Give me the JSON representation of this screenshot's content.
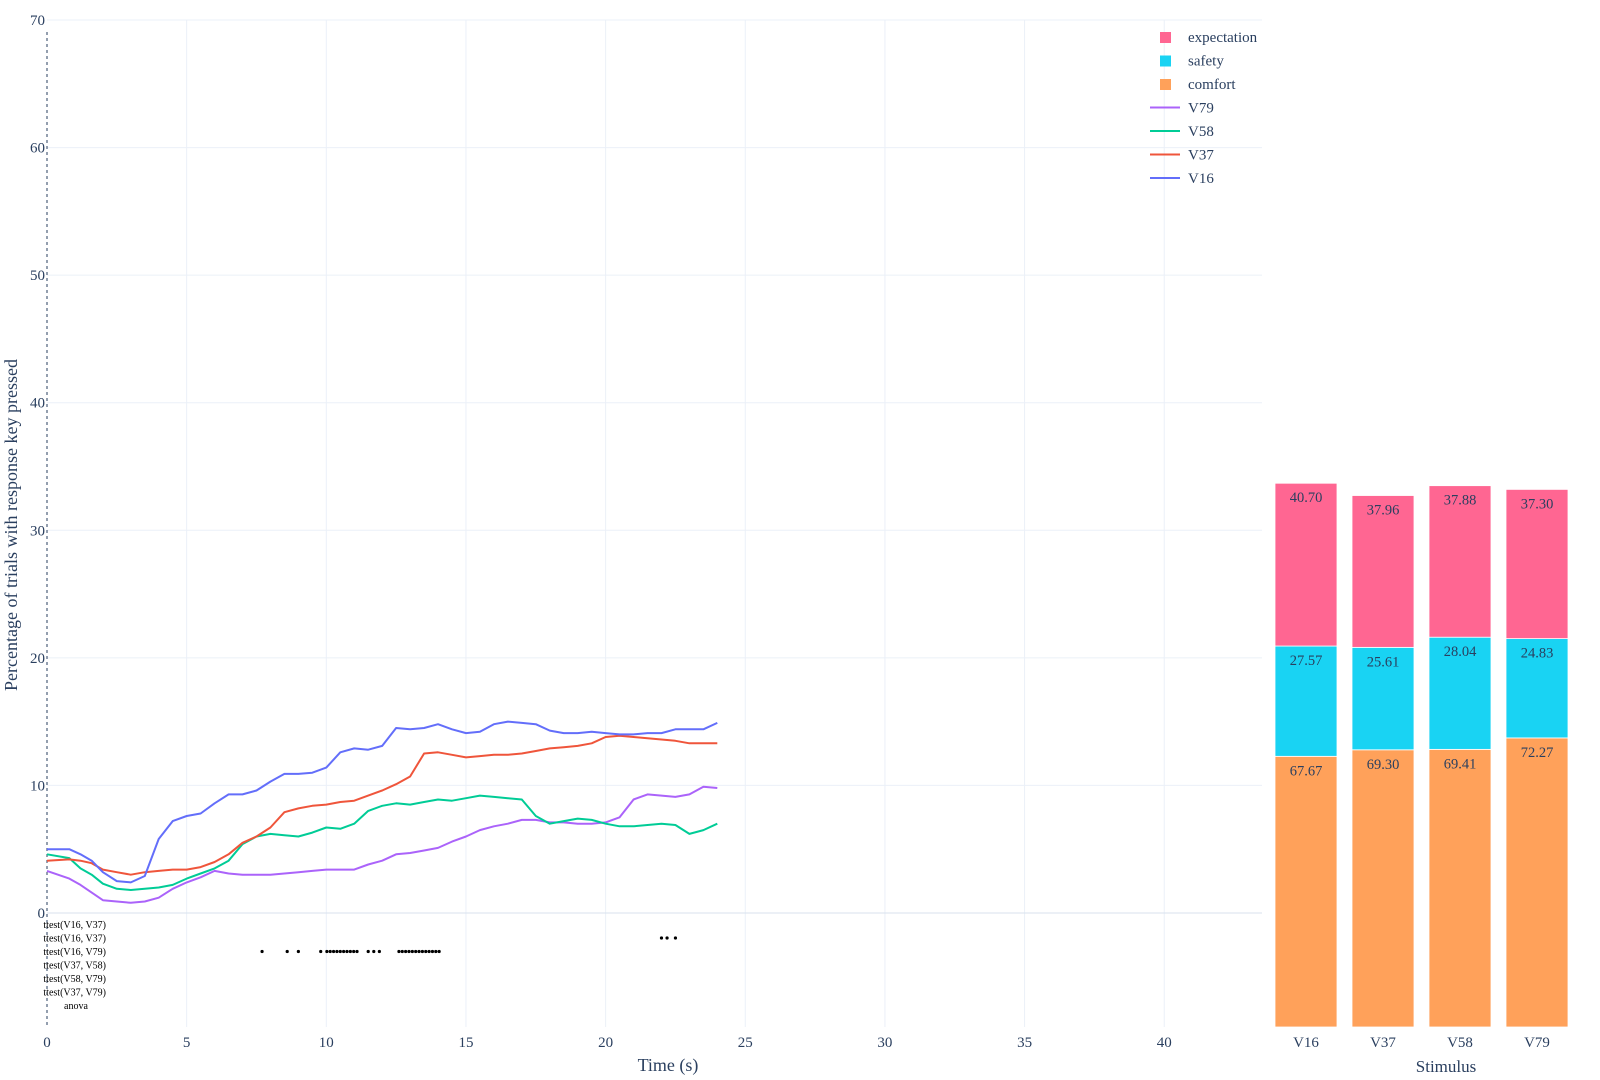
{
  "chart_data": [
    {
      "type": "line",
      "xlabel": "Time (s)",
      "ylabel": "Percentage of trials with response key pressed",
      "xlim": [
        0,
        43.5
      ],
      "ylim": [
        0,
        70
      ],
      "xticks": [
        0,
        5,
        10,
        15,
        20,
        25,
        30,
        35,
        40
      ],
      "yticks": [
        0,
        10,
        20,
        30,
        40,
        50,
        60,
        70
      ],
      "grid": true,
      "series": [
        {
          "name": "V16",
          "color": "#636efa",
          "x": [
            0,
            0.8,
            1.2,
            1.6,
            2,
            2.5,
            3,
            3.5,
            4,
            4.5,
            5,
            5.5,
            6,
            6.5,
            7,
            7.5,
            8,
            8.5,
            9,
            9.5,
            10,
            10.5,
            11,
            11.5,
            12,
            12.5,
            13,
            13.5,
            14,
            14.5,
            15,
            15.5,
            16,
            16.5,
            17,
            17.5,
            18,
            18.5,
            19,
            19.5,
            20,
            20.5,
            21,
            21.5,
            22,
            22.5,
            23,
            23.5,
            24
          ],
          "y": [
            5,
            5,
            4.6,
            4.1,
            3.2,
            2.5,
            2.4,
            2.9,
            5.8,
            7.2,
            7.6,
            7.8,
            8.6,
            9.3,
            9.3,
            9.6,
            10.3,
            10.9,
            10.9,
            11,
            11.4,
            12.6,
            12.9,
            12.8,
            13.1,
            14.5,
            14.4,
            14.5,
            14.8,
            14.4,
            14.1,
            14.2,
            14.8,
            15,
            14.9,
            14.8,
            14.3,
            14.1,
            14.1,
            14.2,
            14.1,
            14,
            14,
            14.1,
            14.1,
            14.4,
            14.4,
            14.4,
            14.9
          ]
        },
        {
          "name": "V37",
          "color": "#ef553b",
          "x": [
            0,
            0.8,
            1.2,
            1.6,
            2,
            2.5,
            3,
            3.5,
            4,
            4.5,
            5,
            5.5,
            6,
            6.5,
            7,
            7.5,
            8,
            8.5,
            9,
            9.5,
            10,
            10.5,
            11,
            11.5,
            12,
            12.5,
            13,
            13.5,
            14,
            14.5,
            15,
            15.5,
            16,
            16.5,
            17,
            17.5,
            18,
            18.5,
            19,
            19.5,
            20,
            20.5,
            21,
            21.5,
            22,
            22.5,
            23,
            23.5,
            24
          ],
          "y": [
            4.1,
            4.2,
            4.1,
            3.9,
            3.4,
            3.2,
            3,
            3.2,
            3.3,
            3.4,
            3.4,
            3.6,
            4,
            4.6,
            5.5,
            6,
            6.7,
            7.9,
            8.2,
            8.4,
            8.5,
            8.7,
            8.8,
            9.2,
            9.6,
            10.1,
            10.7,
            12.5,
            12.6,
            12.4,
            12.2,
            12.3,
            12.4,
            12.4,
            12.5,
            12.7,
            12.9,
            13,
            13.1,
            13.3,
            13.8,
            13.9,
            13.8,
            13.7,
            13.6,
            13.5,
            13.3,
            13.3,
            13.3
          ]
        },
        {
          "name": "V58",
          "color": "#00cc96",
          "x": [
            0,
            0.8,
            1.2,
            1.6,
            2,
            2.5,
            3,
            3.5,
            4,
            4.5,
            5,
            5.5,
            6,
            6.5,
            7,
            7.5,
            8,
            8.5,
            9,
            9.5,
            10,
            10.5,
            11,
            11.5,
            12,
            12.5,
            13,
            13.5,
            14,
            14.5,
            15,
            15.5,
            16,
            16.5,
            17,
            17.5,
            18,
            18.5,
            19,
            19.5,
            20,
            20.5,
            21,
            21.5,
            22,
            22.5,
            23,
            23.5,
            24
          ],
          "y": [
            4.6,
            4.3,
            3.5,
            3,
            2.3,
            1.9,
            1.8,
            1.9,
            2,
            2.2,
            2.7,
            3.1,
            3.5,
            4.1,
            5.4,
            6,
            6.2,
            6.1,
            6,
            6.3,
            6.7,
            6.6,
            7,
            8,
            8.4,
            8.6,
            8.5,
            8.7,
            8.9,
            8.8,
            9,
            9.2,
            9.1,
            9,
            8.9,
            7.6,
            7,
            7.2,
            7.4,
            7.3,
            7,
            6.8,
            6.8,
            6.9,
            7,
            6.9,
            6.2,
            6.5,
            7
          ]
        },
        {
          "name": "V79",
          "color": "#ab63fa",
          "x": [
            0,
            0.8,
            1.2,
            1.6,
            2,
            2.5,
            3,
            3.5,
            4,
            4.5,
            5,
            5.5,
            6,
            6.5,
            7,
            7.5,
            8,
            8.5,
            9,
            9.5,
            10,
            10.5,
            11,
            11.5,
            12,
            12.5,
            13,
            13.5,
            14,
            14.5,
            15,
            15.5,
            16,
            16.5,
            17,
            17.5,
            18,
            18.5,
            19,
            19.5,
            20,
            20.5,
            21,
            21.5,
            22,
            22.5,
            23,
            23.5,
            24
          ],
          "y": [
            3.3,
            2.7,
            2.2,
            1.6,
            1,
            0.9,
            0.8,
            0.9,
            1.2,
            1.9,
            2.4,
            2.8,
            3.3,
            3.1,
            3,
            3,
            3,
            3.1,
            3.2,
            3.3,
            3.4,
            3.4,
            3.4,
            3.8,
            4.1,
            4.6,
            4.7,
            4.9,
            5.1,
            5.6,
            6,
            6.5,
            6.8,
            7,
            7.3,
            7.3,
            7.1,
            7.1,
            7,
            7,
            7.1,
            7.5,
            8.9,
            9.3,
            9.2,
            9.1,
            9.3,
            9.9,
            9.8
          ]
        }
      ],
      "sig_labels": [
        "ttest(V16, V37)",
        "ttest(V16, V37)",
        "ttest(V16, V79)",
        "ttest(V37, V58)",
        "ttest(V58, V79)",
        "ttest(V37, V79)",
        "anova"
      ],
      "sig_dots": [
        {
          "row": 1,
          "x": [
            22,
            22.2,
            22.5
          ]
        },
        {
          "row": 2,
          "x": [
            7.7,
            8.6,
            9,
            9.8,
            10.02,
            10.14,
            10.26,
            10.38,
            10.5,
            10.62,
            10.74,
            10.86,
            10.98,
            11.1,
            11.5,
            11.7,
            11.9,
            12.6,
            12.72,
            12.84,
            12.96,
            13.08,
            13.2,
            13.32,
            13.44,
            13.56,
            13.68,
            13.8,
            13.92,
            14.04
          ]
        }
      ]
    },
    {
      "type": "bar",
      "stacked": true,
      "xlabel": "Stimulus",
      "categories": [
        "V16",
        "V37",
        "V58",
        "V79"
      ],
      "series": [
        {
          "name": "comfort",
          "color": "#ffa15a",
          "values": [
            67.67,
            69.3,
            69.41,
            72.27
          ]
        },
        {
          "name": "safety",
          "color": "#19d3f3",
          "values": [
            27.57,
            25.61,
            28.04,
            24.83
          ]
        },
        {
          "name": "expectation",
          "color": "#ff6692",
          "values": [
            40.7,
            37.96,
            37.88,
            37.3
          ]
        }
      ]
    }
  ],
  "legend": {
    "placement": "top-right",
    "items": [
      {
        "label": "expectation",
        "kind": "box",
        "color": "#ff6692"
      },
      {
        "label": "safety",
        "kind": "box",
        "color": "#19d3f3"
      },
      {
        "label": "comfort",
        "kind": "box",
        "color": "#ffa15a"
      },
      {
        "label": "V79",
        "kind": "line",
        "color": "#ab63fa"
      },
      {
        "label": "V58",
        "kind": "line",
        "color": "#00cc96"
      },
      {
        "label": "V37",
        "kind": "line",
        "color": "#ef553b"
      },
      {
        "label": "V16",
        "kind": "line",
        "color": "#636efa"
      }
    ]
  }
}
